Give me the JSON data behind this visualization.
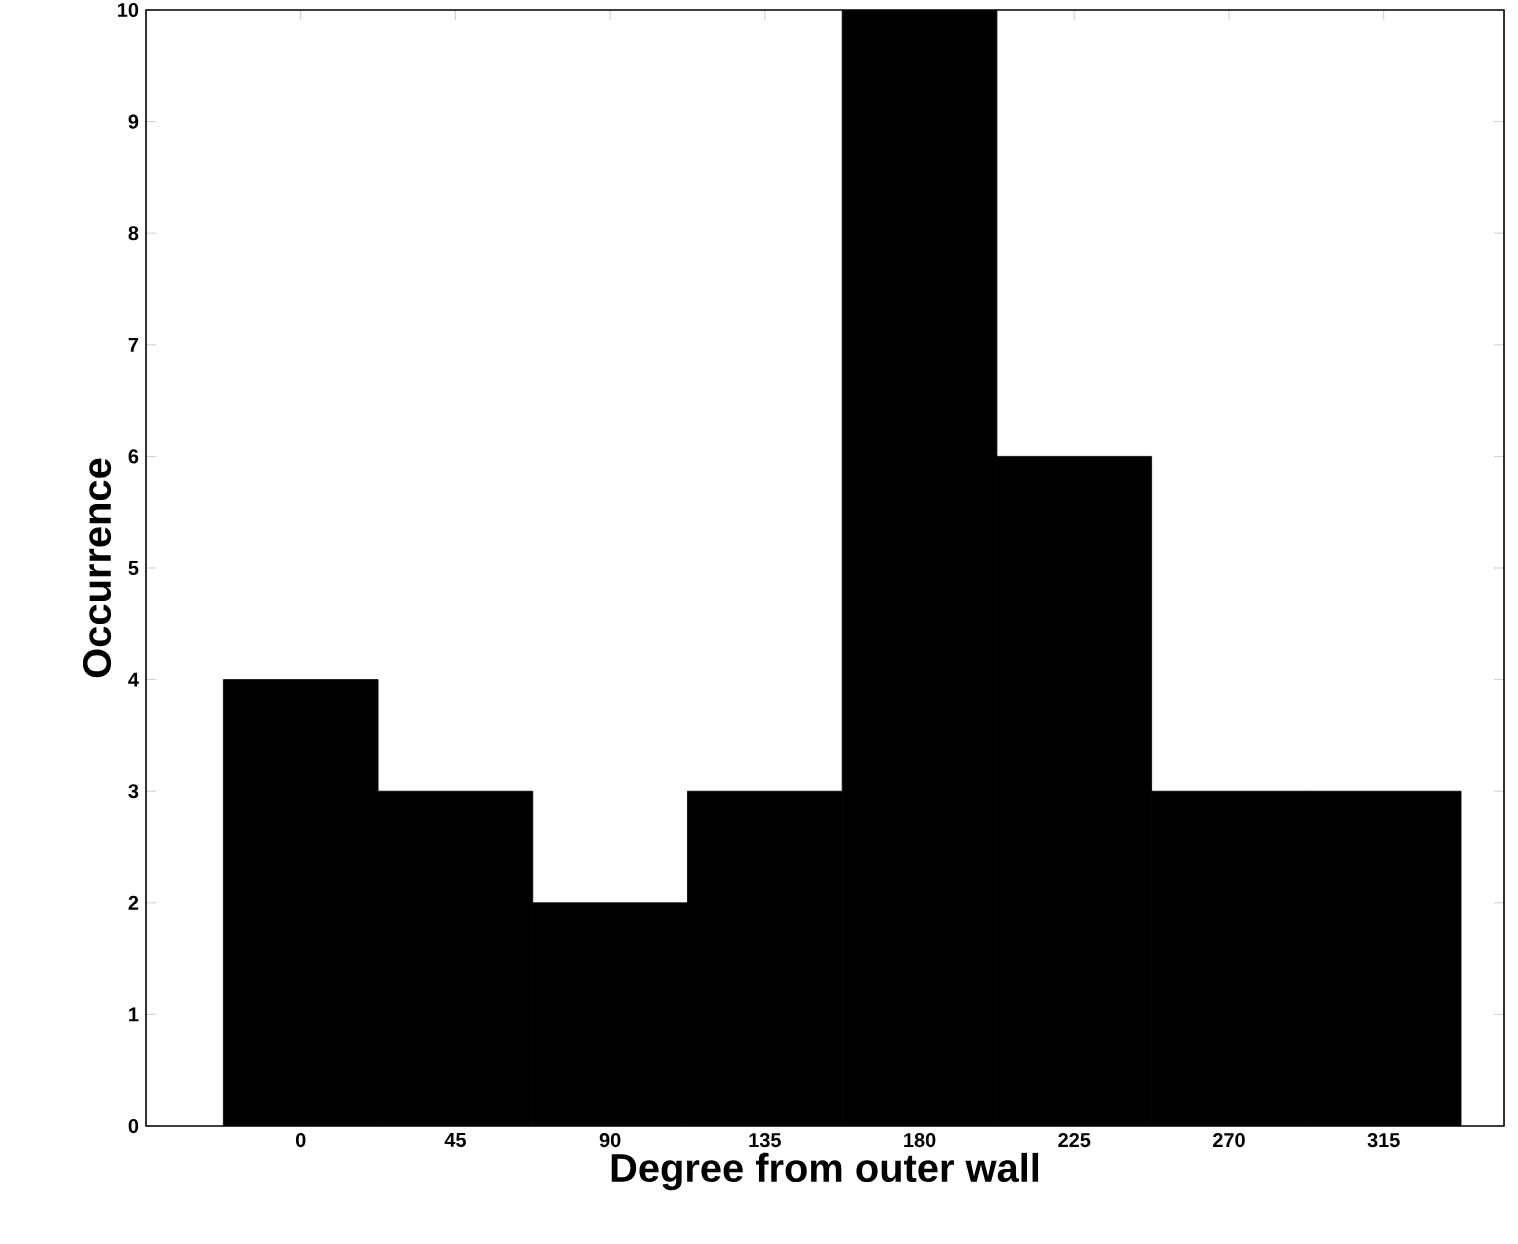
{
  "chart_data": {
    "type": "histogram",
    "xlabel": "Degree from outer wall",
    "ylabel": "Occurrence",
    "bins": [
      -22.5,
      22.5,
      67.5,
      112.5,
      157.5,
      202.5,
      247.5,
      292.5,
      337.5
    ],
    "values": [
      4,
      3,
      2,
      3,
      10,
      6,
      3,
      3
    ],
    "color": "#000000",
    "xlim": [
      -45,
      350
    ],
    "ylim": [
      0,
      10
    ],
    "xticks": [
      0,
      45,
      90,
      135,
      180,
      225,
      270,
      315
    ],
    "yticks": [
      0,
      1,
      2,
      3,
      4,
      5,
      6,
      7,
      8,
      9,
      10
    ]
  }
}
